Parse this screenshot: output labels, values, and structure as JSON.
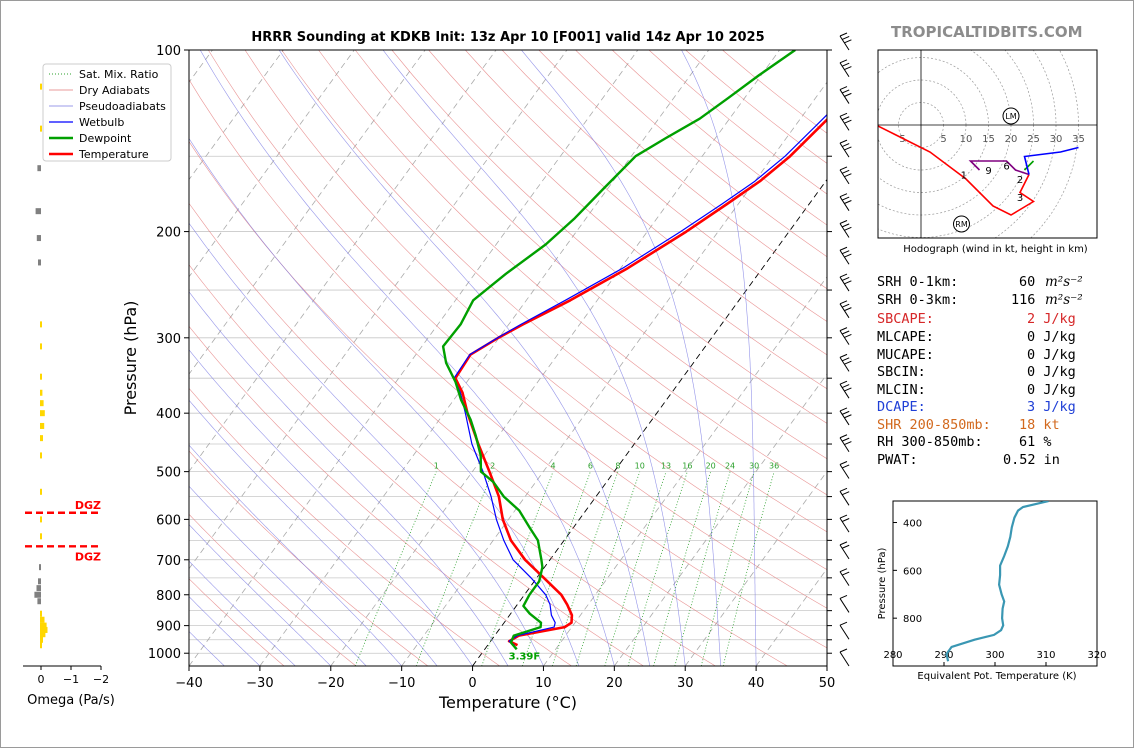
{
  "brand": "TROPICALTIDBITS.COM",
  "chart_data": [
    {
      "type": "line",
      "title": "HRRR Sounding at KDKB Init: 13z Apr 10 [F001] valid 14z Apr 10 2025",
      "xlabel": "Temperature (°C)",
      "ylabel": "Pressure (hPa)",
      "xlim": [
        -40,
        50
      ],
      "ylim": [
        1050,
        100
      ],
      "yscale": "log",
      "xticks": [
        -40,
        -30,
        -20,
        -10,
        0,
        10,
        20,
        30,
        40,
        50
      ],
      "xtick_labels": [
        "−40",
        "−30",
        "−20",
        "−10",
        "0",
        "10",
        "20",
        "30",
        "40",
        "50"
      ],
      "yticks": [
        100,
        200,
        300,
        400,
        500,
        600,
        700,
        800,
        900,
        1000
      ],
      "yticks_minor": [
        150,
        250,
        350,
        450,
        550,
        650,
        750,
        850,
        950
      ],
      "mixing_ratio_labels": [
        "1",
        "2",
        "4",
        "6",
        "8",
        "10",
        "13",
        "16",
        "20",
        "24",
        "30",
        "36"
      ],
      "legend": [
        "Sat. Mix. Ratio",
        "Dry Adiabats",
        "Pseudoadiabats",
        "Wetbulb",
        "Dewpoint",
        "Temperature"
      ],
      "legend_position": "top-left",
      "surface_annotation": "3.39F",
      "series": [
        {
          "name": "Temperature",
          "color": "#ff0000",
          "points": [
            [
              4.2,
              970
            ],
            [
              2.6,
              955
            ],
            [
              3.4,
              935
            ],
            [
              9.0,
              905
            ],
            [
              9.5,
              890
            ],
            [
              8.8,
              865
            ],
            [
              7.0,
              830
            ],
            [
              5.2,
              800
            ],
            [
              1.0,
              750
            ],
            [
              -3.5,
              700
            ],
            [
              -7.5,
              650
            ],
            [
              -10.8,
              600
            ],
            [
              -13.7,
              550
            ],
            [
              -17.6,
              500
            ],
            [
              -22.0,
              450
            ],
            [
              -26.7,
              400
            ],
            [
              -29.5,
              370
            ],
            [
              -32.0,
              350
            ],
            [
              -32.3,
              320
            ],
            [
              -30.1,
              300
            ],
            [
              -28.0,
              285
            ],
            [
              -23.8,
              260
            ],
            [
              -19.0,
              230
            ],
            [
              -14.5,
              200
            ],
            [
              -11.6,
              180
            ],
            [
              -9.3,
              165
            ],
            [
              -7.6,
              150
            ],
            [
              -6.5,
              135
            ],
            [
              -5.3,
              120
            ],
            [
              -4.0,
              110
            ],
            [
              -3.2,
              100
            ]
          ]
        },
        {
          "name": "Wetbulb",
          "color": "#0000ff",
          "points": [
            [
              3.8,
              970
            ],
            [
              2.6,
              955
            ],
            [
              3.2,
              935
            ],
            [
              7.5,
              905
            ],
            [
              7.2,
              890
            ],
            [
              5.9,
              865
            ],
            [
              4.6,
              830
            ],
            [
              3.0,
              800
            ],
            [
              -0.8,
              750
            ],
            [
              -5.2,
              700
            ],
            [
              -8.5,
              650
            ],
            [
              -11.7,
              600
            ],
            [
              -14.8,
              550
            ],
            [
              -18.5,
              500
            ],
            [
              -22.9,
              450
            ],
            [
              -27.0,
              400
            ],
            [
              -29.8,
              370
            ],
            [
              -32.2,
              350
            ],
            [
              -32.4,
              320
            ],
            [
              -30.2,
              300
            ],
            [
              -28.3,
              285
            ],
            [
              -24.5,
              260
            ],
            [
              -19.7,
              230
            ],
            [
              -15.3,
              200
            ],
            [
              -12.3,
              180
            ],
            [
              -10.0,
              165
            ],
            [
              -8.3,
              150
            ],
            [
              -7.2,
              135
            ],
            [
              -6.0,
              120
            ],
            [
              -4.6,
              110
            ],
            [
              -3.6,
              100
            ]
          ]
        },
        {
          "name": "Dewpoint",
          "color": "#00a000",
          "points": [
            [
              4.5,
              985
            ],
            [
              3.0,
              960
            ],
            [
              2.7,
              935
            ],
            [
              5.6,
              905
            ],
            [
              5.2,
              890
            ],
            [
              2.7,
              860
            ],
            [
              1.0,
              835
            ],
            [
              0.7,
              800
            ],
            [
              0.7,
              760
            ],
            [
              -0.3,
              720
            ],
            [
              -1.2,
              700
            ],
            [
              -3.7,
              650
            ],
            [
              -6.1,
              620
            ],
            [
              -9.4,
              580
            ],
            [
              -13.0,
              550
            ],
            [
              -16.0,
              520
            ],
            [
              -18.8,
              500
            ],
            [
              -20.5,
              470
            ],
            [
              -23.3,
              435
            ],
            [
              -25.6,
              410
            ],
            [
              -29.0,
              380
            ],
            [
              -31.6,
              355
            ],
            [
              -34.9,
              330
            ],
            [
              -37.0,
              310
            ],
            [
              -36.8,
              285
            ],
            [
              -37.5,
              260
            ],
            [
              -35.6,
              235
            ],
            [
              -33.0,
              210
            ],
            [
              -31.6,
              190
            ],
            [
              -30.6,
              170
            ],
            [
              -29.4,
              150
            ],
            [
              -27.0,
              140
            ],
            [
              -24.2,
              130
            ],
            [
              -22.3,
              120
            ],
            [
              -20.3,
              110
            ],
            [
              -17.8,
              100
            ]
          ]
        }
      ]
    },
    {
      "type": "scatter",
      "title": "Omega",
      "xlabel": "Omega (Pa/s)",
      "xticks": [
        0,
        -1,
        -2
      ],
      "xtick_labels": [
        "0",
        "−1",
        "−2"
      ],
      "colors": {
        "up": "#ffd700",
        "down": "#808080"
      },
      "dgz_label": "DGZ",
      "dgz_levels_hpa": [
        585,
        665
      ],
      "series": [
        {
          "name": "",
          "color": "#ffd700",
          "points": [
            [
              -0.03,
              115
            ],
            [
              -0.03,
              135
            ],
            [
              -0.02,
              285
            ],
            [
              -0.02,
              310
            ],
            [
              -0.02,
              348
            ],
            [
              -0.08,
              370
            ],
            [
              -0.12,
              385
            ],
            [
              -0.16,
              400
            ],
            [
              -0.14,
              420
            ],
            [
              -0.1,
              440
            ],
            [
              -0.04,
              470
            ],
            [
              -0.02,
              540
            ],
            [
              -0.02,
              600
            ],
            [
              -0.02,
              640
            ],
            [
              -0.05,
              860
            ],
            [
              -0.15,
              880
            ],
            [
              -0.22,
              900
            ],
            [
              -0.25,
              915
            ],
            [
              -0.18,
              930
            ],
            [
              -0.1,
              950
            ],
            [
              -0.05,
              970
            ]
          ]
        },
        {
          "name": "",
          "color": "#808080",
          "points": [
            [
              0.12,
              157
            ],
            [
              0.18,
              185
            ],
            [
              0.14,
              205
            ],
            [
              0.1,
              225
            ],
            [
              0.06,
              720
            ],
            [
              0.1,
              760
            ],
            [
              0.15,
              780
            ],
            [
              0.22,
              800
            ],
            [
              0.12,
              820
            ]
          ]
        }
      ]
    },
    {
      "type": "line",
      "title": "Hodograph (wind in kt, height in km)",
      "rings": [
        "5",
        "10",
        "15",
        "20",
        "25",
        "30",
        "35"
      ],
      "ring_labels_x": [
        "5",
        "5",
        "10",
        "15",
        "20",
        "25",
        "30",
        "35"
      ],
      "markers": [
        "LM",
        "RM"
      ],
      "height_labels": [
        "1",
        "9",
        "6",
        "2",
        "3"
      ],
      "series": [
        {
          "name": "",
          "color": "#ff0000",
          "points": [
            [
              -10,
              0
            ],
            [
              -6,
              -2
            ],
            [
              2,
              -6
            ],
            [
              10,
              -12
            ],
            [
              16,
              -18
            ],
            [
              20,
              -20
            ],
            [
              25,
              -17
            ],
            [
              22,
              -15
            ],
            [
              24,
              -11
            ]
          ]
        },
        {
          "name": "",
          "color": "#00a000",
          "points": [
            [
              23,
              -10
            ],
            [
              25,
              -8
            ]
          ]
        },
        {
          "name": "",
          "color": "#800080",
          "points": [
            [
              24,
              -11
            ],
            [
              21,
              -10
            ],
            [
              19,
              -8
            ],
            [
              16,
              -8
            ],
            [
              11,
              -8
            ],
            [
              13,
              -10
            ]
          ]
        },
        {
          "name": "",
          "color": "#0000ff",
          "points": [
            [
              24,
              -11
            ],
            [
              23,
              -7
            ],
            [
              31,
              -6
            ],
            [
              35,
              -5
            ]
          ]
        }
      ]
    },
    {
      "type": "line",
      "xlabel": "Equivalent Pot. Temperature (K)",
      "ylabel": "Pressure (hPa)",
      "xlim": [
        280,
        320
      ],
      "ylim": [
        1000,
        310
      ],
      "xticks": [
        280,
        290,
        300,
        310,
        320
      ],
      "yticks": [
        400,
        600,
        800
      ],
      "series": [
        {
          "name": "",
          "color": "#3a97b3",
          "points": [
            [
              310.5,
              310
            ],
            [
              308.5,
              320
            ],
            [
              305.5,
              335
            ],
            [
              304.5,
              350
            ],
            [
              303.8,
              380
            ],
            [
              303.3,
              420
            ],
            [
              303,
              460
            ],
            [
              302.5,
              500
            ],
            [
              301.8,
              540
            ],
            [
              301,
              580
            ],
            [
              301,
              620
            ],
            [
              300.8,
              660
            ],
            [
              301.3,
              700
            ],
            [
              301.8,
              730
            ],
            [
              301.5,
              760
            ],
            [
              301.4,
              800
            ],
            [
              301.6,
              830
            ],
            [
              301.2,
              850
            ],
            [
              299.8,
              870
            ],
            [
              296,
              890
            ],
            [
              291.5,
              920
            ],
            [
              290.5,
              950
            ],
            [
              290.8,
              980
            ]
          ]
        }
      ]
    }
  ],
  "stats": {
    "srh1_label": "SRH 0-1km:",
    "srh1_value": "60",
    "srh1_unit": "m²s⁻²",
    "srh3_label": "SRH 0-3km:",
    "srh3_value": "116",
    "srh3_unit": "m²s⁻²",
    "sbcape_label": "SBCAPE:",
    "sbcape_value": "2 J/kg",
    "mlcape_label": "MLCAPE:",
    "mlcape_value": "0 J/kg",
    "mucape_label": "MUCAPE:",
    "mucape_value": "0 J/kg",
    "sbcin_label": "SBCIN:",
    "sbcin_value": "0 J/kg",
    "mlcin_label": "MLCIN:",
    "mlcin_value": "0 J/kg",
    "dcape_label": "DCAPE:",
    "dcape_value": "3 J/kg",
    "shr_label": "SHR 200-850mb:",
    "shr_value": "18 kt",
    "rh_label": "RH 300-850mb:",
    "rh_value": "61 %",
    "pwat_label": "PWAT:",
    "pwat_value": "0.52 in",
    "colors": {
      "sbcape": "#d62728",
      "dcape": "#1f3fd6",
      "shr": "#d2691e",
      "default": "#000000"
    }
  }
}
